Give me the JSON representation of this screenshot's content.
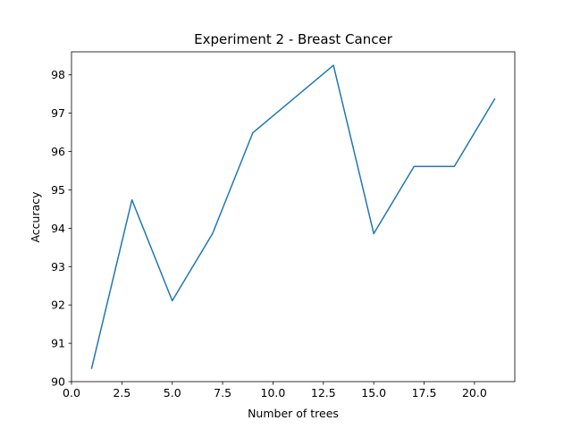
{
  "chart_data": {
    "type": "line",
    "title": "Experiment 2 - Breast Cancer",
    "xlabel": "Number of trees",
    "ylabel": "Accuracy",
    "xlim": [
      0.0,
      22.0
    ],
    "ylim": [
      90.0,
      98.6
    ],
    "xticks": [
      0.0,
      2.5,
      5.0,
      7.5,
      10.0,
      12.5,
      15.0,
      17.5,
      20.0
    ],
    "xtick_labels": [
      "0.0",
      "2.5",
      "5.0",
      "7.5",
      "10.0",
      "12.5",
      "15.0",
      "17.5",
      "20.0"
    ],
    "yticks": [
      90,
      91,
      92,
      93,
      94,
      95,
      96,
      97,
      98
    ],
    "ytick_labels": [
      "90",
      "91",
      "92",
      "93",
      "94",
      "95",
      "96",
      "97",
      "98"
    ],
    "grid": false,
    "series": [
      {
        "color": "#1f77b4",
        "x": [
          1,
          3,
          5,
          7,
          9,
          11,
          13,
          15,
          17,
          19,
          21
        ],
        "y": [
          90.35,
          94.74,
          92.11,
          93.86,
          96.49,
          97.37,
          98.25,
          93.86,
          95.61,
          95.61,
          97.37
        ]
      }
    ]
  }
}
